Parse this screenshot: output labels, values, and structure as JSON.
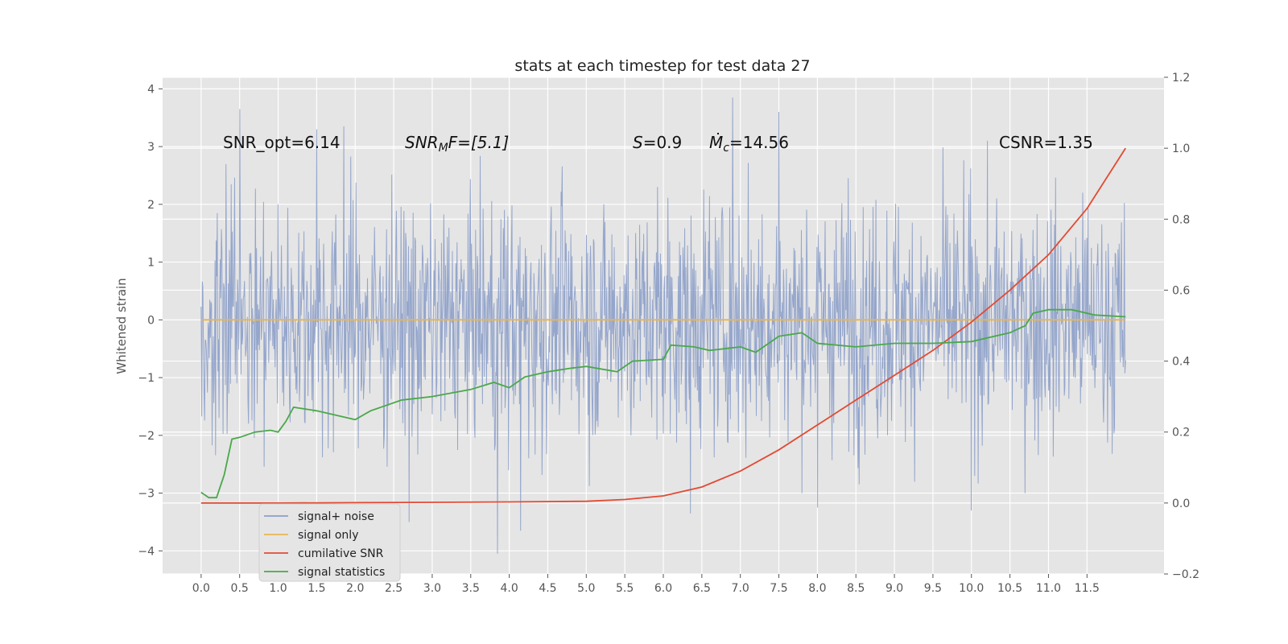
{
  "chart_data": {
    "type": "line",
    "title": "stats at each timestep for test data 27",
    "ylabel": "Whitened strain",
    "xlabel": "",
    "xlim": [
      -0.5,
      12.5
    ],
    "ylim_left": [
      -4.4,
      4.2
    ],
    "ylim_right": [
      -0.2,
      1.2
    ],
    "x_ticks": [
      "0.0",
      "0.5",
      "1.0",
      "1.5",
      "2.0",
      "2.5",
      "3.0",
      "3.5",
      "4.0",
      "4.5",
      "5.0",
      "5.5",
      "6.0",
      "6.5",
      "7.0",
      "7.5",
      "8.0",
      "8.5",
      "9.0",
      "9.5",
      "10.0",
      "10.5",
      "11.0",
      "11.5"
    ],
    "y_ticks_left": [
      "4",
      "3",
      "2",
      "1",
      "0",
      "−1",
      "−2",
      "−3",
      "−4"
    ],
    "y_ticks_right": [
      "1.2",
      "1.0",
      "0.8",
      "0.6",
      "0.4",
      "0.2",
      "0.0",
      "−0.2"
    ],
    "grid": true,
    "legend": "lower-left",
    "annotations": {
      "snr_opt": "SNR_opt=6.14",
      "snr_mf_sym": "SNR",
      "snr_mf_sub": "M",
      "snr_mf_rest": "F=[5.1]",
      "s_sym": "S",
      "s_val": "=0.9",
      "mc_sym": "M",
      "mc_sub": "c",
      "mc_val": "=14.56",
      "csnr": "CSNR=1.35"
    },
    "series": [
      {
        "name": "signal+ noise",
        "color": "#8c9fc9",
        "axis": "left",
        "x_range": [
          0.0,
          12.0
        ],
        "band_center": 0.0,
        "band_typical": 1.75,
        "extremes": [
          [
            1.5,
            3.3
          ],
          [
            1.85,
            3.35
          ],
          [
            6.9,
            3.85
          ],
          [
            7.5,
            3.6
          ],
          [
            3.85,
            -4.05
          ],
          [
            4.15,
            -3.65
          ],
          [
            2.7,
            -3.5
          ],
          [
            6.35,
            -3.35
          ],
          [
            8.0,
            -3.25
          ],
          [
            10.0,
            -3.3
          ],
          [
            0.5,
            3.65
          ]
        ]
      },
      {
        "name": "signal only",
        "color": "#e8b552",
        "axis": "left",
        "x": [
          0.0,
          12.0
        ],
        "y": [
          0.0,
          0.0
        ]
      },
      {
        "name": "cumilative SNR",
        "color": "#e24a33",
        "axis": "right",
        "x": [
          0.0,
          1.0,
          2.0,
          3.0,
          4.0,
          5.0,
          5.5,
          6.0,
          6.5,
          7.0,
          7.5,
          8.0,
          8.5,
          9.0,
          9.5,
          10.0,
          10.5,
          11.0,
          11.5,
          12.0
        ],
        "y": [
          0.0,
          0.0,
          0.001,
          0.002,
          0.003,
          0.005,
          0.01,
          0.02,
          0.045,
          0.09,
          0.15,
          0.22,
          0.29,
          0.36,
          0.43,
          0.51,
          0.6,
          0.7,
          0.83,
          1.0
        ]
      },
      {
        "name": "signal statistics",
        "color": "#4aa84a",
        "axis": "right",
        "x": [
          0.0,
          0.1,
          0.2,
          0.3,
          0.4,
          0.5,
          0.7,
          0.9,
          1.0,
          1.1,
          1.2,
          1.5,
          1.8,
          2.0,
          2.2,
          2.4,
          2.6,
          3.0,
          3.5,
          3.8,
          4.0,
          4.2,
          4.5,
          4.8,
          5.0,
          5.4,
          5.6,
          6.0,
          6.1,
          6.4,
          6.6,
          7.0,
          7.2,
          7.5,
          7.8,
          8.0,
          8.5,
          9.0,
          9.5,
          10.0,
          10.5,
          10.7,
          10.8,
          11.0,
          11.3,
          11.6,
          12.0
        ],
        "y": [
          0.03,
          0.015,
          0.015,
          0.08,
          0.18,
          0.185,
          0.2,
          0.205,
          0.2,
          0.23,
          0.27,
          0.26,
          0.245,
          0.235,
          0.26,
          0.275,
          0.29,
          0.3,
          0.32,
          0.34,
          0.325,
          0.355,
          0.37,
          0.38,
          0.385,
          0.37,
          0.4,
          0.405,
          0.445,
          0.44,
          0.43,
          0.44,
          0.425,
          0.47,
          0.48,
          0.45,
          0.44,
          0.45,
          0.45,
          0.455,
          0.48,
          0.5,
          0.535,
          0.545,
          0.545,
          0.53,
          0.525
        ]
      }
    ]
  }
}
